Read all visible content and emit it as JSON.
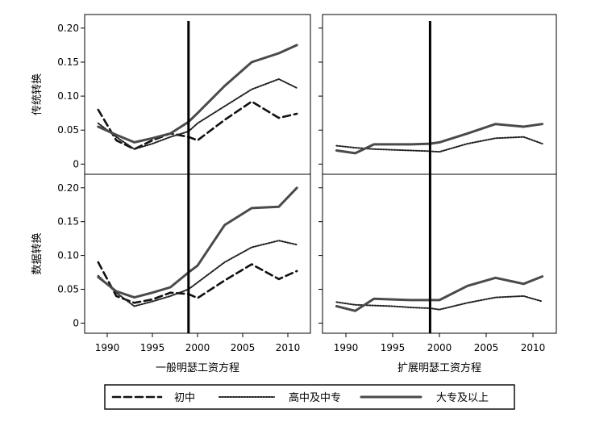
{
  "chart_data": {
    "type": "line",
    "styles": {
      "series_colors": [
        "#111111",
        "#222222",
        "#4a4a4a"
      ],
      "dash": [
        "9,5",
        "1.6,1.8",
        ""
      ],
      "widths": [
        2.6,
        2.0,
        3.0
      ]
    },
    "legend": {
      "position": "bottom",
      "entries": [
        "初中",
        "高中及中专",
        "大专及以上"
      ]
    },
    "columns": [
      {
        "xlabel": "一般明瑟工资方程"
      },
      {
        "xlabel": "扩展明瑟工资方程"
      }
    ],
    "rows": [
      {
        "ylabel": "传统转换"
      },
      {
        "ylabel": "数据转换"
      }
    ],
    "x_ticks": [
      "1990",
      "1995",
      "2000",
      "2005",
      "2010"
    ],
    "xlim": [
      1987.5,
      2012.5
    ],
    "ylim": [
      -0.015,
      0.22
    ],
    "y_ticks": [
      {
        "value": 0,
        "label": "0"
      },
      {
        "value": 0.05,
        "label": "0.05"
      },
      {
        "value": 0.1,
        "label": "0.10"
      },
      {
        "value": 0.15,
        "label": "0.15"
      },
      {
        "value": 0.2,
        "label": "0.20"
      }
    ],
    "vline_x": 1999,
    "panels": [
      {
        "row": 0,
        "col": 0,
        "series": [
          {
            "name": "初中",
            "x": [
              1989,
              1991,
              1993,
              1995,
              1997,
              1999,
              2000,
              2003,
              2006,
              2009,
              2011
            ],
            "values": [
              0.08,
              0.035,
              0.022,
              0.035,
              0.045,
              0.04,
              0.035,
              0.065,
              0.092,
              0.068,
              0.074
            ]
          },
          {
            "name": "高中及中专",
            "x": [
              1989,
              1991,
              1993,
              1995,
              1997,
              1999,
              2000,
              2003,
              2006,
              2009,
              2011
            ],
            "values": [
              0.06,
              0.04,
              0.022,
              0.03,
              0.04,
              0.048,
              0.06,
              0.085,
              0.11,
              0.125,
              0.112
            ]
          },
          {
            "name": "大专及以上",
            "x": [
              1989,
              1991,
              1993,
              1995,
              1997,
              1999,
              2000,
              2003,
              2006,
              2009,
              2011
            ],
            "values": [
              0.055,
              0.043,
              0.032,
              0.038,
              0.045,
              0.062,
              0.075,
              0.115,
              0.15,
              0.163,
              0.175
            ]
          }
        ]
      },
      {
        "row": 0,
        "col": 1,
        "series": [
          {
            "name": "初中",
            "x": [],
            "values": []
          },
          {
            "name": "高中及中专",
            "x": [
              1989,
              1991,
              1993,
              1995,
              1997,
              1999,
              2000,
              2003,
              2006,
              2009,
              2011
            ],
            "values": [
              0.027,
              0.024,
              0.022,
              0.021,
              0.02,
              0.019,
              0.018,
              0.03,
              0.038,
              0.04,
              0.03
            ]
          },
          {
            "name": "大专及以上",
            "x": [
              1989,
              1991,
              1993,
              1995,
              1997,
              1999,
              2000,
              2003,
              2006,
              2009,
              2011
            ],
            "values": [
              0.02,
              0.016,
              0.029,
              0.029,
              0.029,
              0.03,
              0.032,
              0.045,
              0.059,
              0.055,
              0.059
            ]
          }
        ]
      },
      {
        "row": 1,
        "col": 0,
        "series": [
          {
            "name": "初中",
            "x": [
              1989,
              1991,
              1993,
              1995,
              1997,
              1999,
              2000,
              2003,
              2006,
              2009,
              2011
            ],
            "values": [
              0.09,
              0.04,
              0.03,
              0.035,
              0.045,
              0.043,
              0.037,
              0.063,
              0.087,
              0.065,
              0.077
            ]
          },
          {
            "name": "高中及中专",
            "x": [
              1989,
              1991,
              1993,
              1995,
              1997,
              1999,
              2000,
              2003,
              2006,
              2009,
              2011
            ],
            "values": [
              0.07,
              0.045,
              0.025,
              0.032,
              0.04,
              0.05,
              0.06,
              0.09,
              0.112,
              0.122,
              0.116
            ]
          },
          {
            "name": "大专及以上",
            "x": [
              1989,
              1991,
              1993,
              1995,
              1997,
              1999,
              2000,
              2003,
              2006,
              2009,
              2011
            ],
            "values": [
              0.068,
              0.047,
              0.038,
              0.045,
              0.053,
              0.075,
              0.085,
              0.145,
              0.17,
              0.172,
              0.2
            ]
          }
        ]
      },
      {
        "row": 1,
        "col": 1,
        "series": [
          {
            "name": "初中",
            "x": [],
            "values": []
          },
          {
            "name": "高中及中专",
            "x": [
              1989,
              1991,
              1993,
              1995,
              1997,
              1999,
              2000,
              2003,
              2006,
              2009,
              2011
            ],
            "values": [
              0.031,
              0.027,
              0.026,
              0.025,
              0.023,
              0.022,
              0.02,
              0.03,
              0.038,
              0.04,
              0.032
            ]
          },
          {
            "name": "大专及以上",
            "x": [
              1989,
              1991,
              1993,
              1995,
              1997,
              1999,
              2000,
              2003,
              2006,
              2009,
              2011
            ],
            "values": [
              0.025,
              0.018,
              0.036,
              0.035,
              0.034,
              0.034,
              0.034,
              0.055,
              0.067,
              0.058,
              0.069
            ]
          }
        ]
      }
    ]
  }
}
